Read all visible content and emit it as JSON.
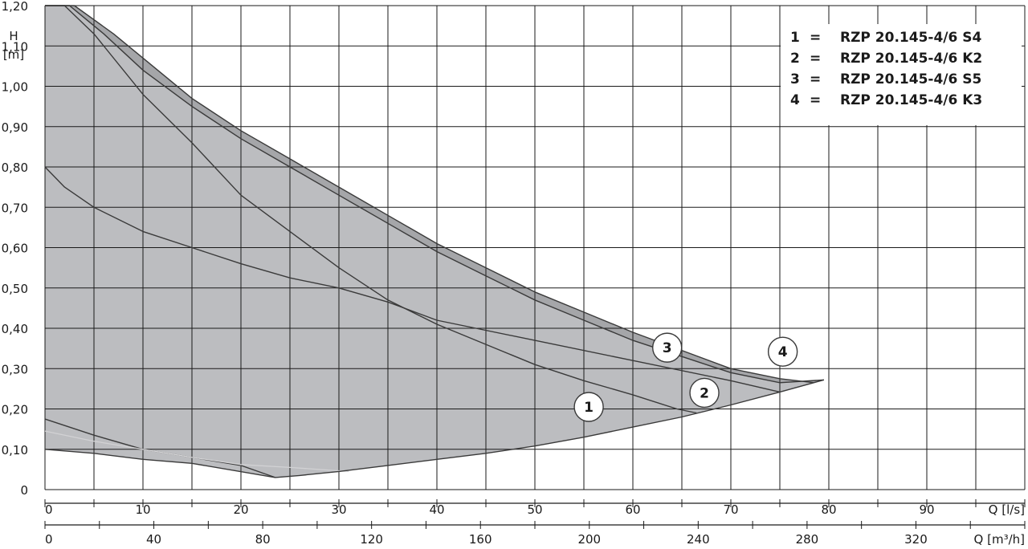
{
  "chart_data": {
    "type": "line",
    "ylabel": [
      "H",
      "[m]"
    ],
    "xlabel_primary": "Q [l/s]",
    "xlabel_secondary": "Q [m³/h]",
    "ylim": [
      0,
      1.2
    ],
    "xlim": [
      0,
      100
    ],
    "y_ticks": [
      "0",
      "0,10",
      "0,20",
      "0,30",
      "0,40",
      "0,50",
      "0,60",
      "0,70",
      "0,80",
      "0,90",
      "1,00",
      "1,10",
      "1,20"
    ],
    "x_ticks_ls": [
      "0",
      "10",
      "20",
      "30",
      "40",
      "50",
      "60",
      "70",
      "80",
      "90"
    ],
    "x_ticks_m3h": [
      "0",
      "40",
      "80",
      "120",
      "160",
      "200",
      "240",
      "280",
      "320"
    ],
    "grid": true,
    "legend_placement": "top-right",
    "operating_envelope": {
      "upper": [
        [
          0,
          1.2
        ],
        [
          2.5,
          1.2
        ],
        [
          6,
          1.13
        ],
        [
          10,
          1.04
        ],
        [
          15,
          0.95
        ],
        [
          20,
          0.87
        ],
        [
          25,
          0.8
        ],
        [
          30,
          0.73
        ],
        [
          35,
          0.66
        ],
        [
          40,
          0.59
        ],
        [
          45,
          0.53
        ],
        [
          50,
          0.47
        ],
        [
          55,
          0.42
        ],
        [
          60,
          0.37
        ],
        [
          65,
          0.33
        ],
        [
          70,
          0.29
        ],
        [
          75,
          0.265
        ],
        [
          79.5,
          0.272
        ]
      ],
      "lower": [
        [
          79.5,
          0.272
        ],
        [
          75,
          0.242
        ],
        [
          70,
          0.21
        ],
        [
          65,
          0.18
        ],
        [
          60,
          0.155
        ],
        [
          55,
          0.13
        ],
        [
          50,
          0.108
        ],
        [
          45,
          0.09
        ],
        [
          40,
          0.075
        ],
        [
          35,
          0.06
        ],
        [
          30,
          0.045
        ],
        [
          26,
          0.035
        ],
        [
          23.5,
          0.03
        ],
        [
          15,
          0.065
        ],
        [
          10,
          0.075
        ],
        [
          5,
          0.09
        ],
        [
          0,
          0.1
        ]
      ]
    },
    "series": [
      {
        "name": "1",
        "label_point": [
          55.5,
          0.205
        ],
        "values": [
          [
            0,
            1.2
          ],
          [
            2,
            1.2
          ],
          [
            5,
            1.13
          ],
          [
            10,
            0.98
          ],
          [
            15,
            0.86
          ],
          [
            20,
            0.73
          ],
          [
            25,
            0.64
          ],
          [
            30,
            0.55
          ],
          [
            35,
            0.47
          ],
          [
            40,
            0.41
          ],
          [
            45,
            0.36
          ],
          [
            50,
            0.31
          ],
          [
            55,
            0.27
          ],
          [
            60,
            0.235
          ],
          [
            64.5,
            0.2
          ],
          [
            66.5,
            0.19
          ]
        ]
      },
      {
        "name": "2",
        "label_point": [
          67.3,
          0.24
        ],
        "values": [
          [
            0,
            1.2
          ],
          [
            3,
            1.2
          ],
          [
            7,
            1.13
          ],
          [
            10,
            1.07
          ],
          [
            15,
            0.97
          ],
          [
            20,
            0.89
          ],
          [
            25,
            0.82
          ],
          [
            30,
            0.75
          ],
          [
            35,
            0.68
          ],
          [
            40,
            0.61
          ],
          [
            45,
            0.55
          ],
          [
            50,
            0.49
          ],
          [
            55,
            0.44
          ],
          [
            60,
            0.39
          ],
          [
            65,
            0.345
          ],
          [
            70,
            0.3
          ],
          [
            75,
            0.275
          ],
          [
            78.5,
            0.265
          ]
        ]
      },
      {
        "name": "3",
        "label_point": [
          63.5,
          0.352
        ],
        "values": [
          [
            0,
            0.175
          ],
          [
            5,
            0.135
          ],
          [
            10,
            0.1
          ],
          [
            15,
            0.08
          ],
          [
            20,
            0.06
          ],
          [
            23.5,
            0.03
          ]
        ]
      },
      {
        "name": "4",
        "label_point": [
          75.3,
          0.342
        ],
        "values": [
          [
            0,
            0.8
          ],
          [
            2,
            0.75
          ],
          [
            5,
            0.7
          ],
          [
            10,
            0.64
          ],
          [
            15,
            0.6
          ],
          [
            20,
            0.56
          ],
          [
            25,
            0.525
          ],
          [
            30,
            0.5
          ],
          [
            35,
            0.465
          ],
          [
            40,
            0.42
          ],
          [
            50,
            0.37
          ],
          [
            60,
            0.32
          ],
          [
            70,
            0.27
          ],
          [
            75,
            0.242
          ]
        ]
      },
      {
        "name": "",
        "values": [
          [
            0,
            0.145
          ],
          [
            5,
            0.12
          ],
          [
            10,
            0.1
          ],
          [
            15,
            0.08
          ],
          [
            20,
            0.062
          ],
          [
            25,
            0.055
          ],
          [
            31,
            0.045
          ]
        ]
      }
    ]
  },
  "legend": {
    "items": [
      {
        "num": "1",
        "eq": "=",
        "label": "RZP 20.145-4/6 S4"
      },
      {
        "num": "2",
        "eq": "=",
        "label": "RZP 20.145-4/6 K2"
      },
      {
        "num": "3",
        "eq": "=",
        "label": "RZP 20.145-4/6 S5"
      },
      {
        "num": "4",
        "eq": "=",
        "label": "RZP 20.145-4/6 K3"
      }
    ]
  },
  "colors": {
    "envelope_fill": "#bcbdc0",
    "upper_band_fill": "#a5a6a9",
    "curve": "#3a3a3a",
    "faint_curve": "#d2d2d4",
    "grid": "#1a1a1a"
  }
}
